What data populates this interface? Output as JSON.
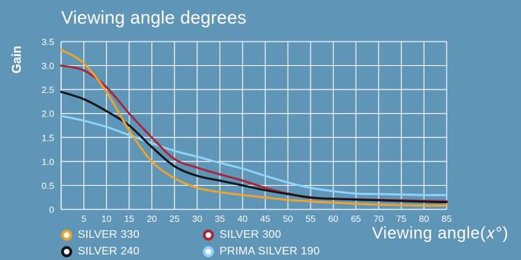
{
  "chart_data": {
    "type": "line",
    "title": "Viewing angle degrees",
    "xlabel": "Viewing  angle(𝑥°)",
    "ylabel": "Gain",
    "xlim": [
      0,
      85
    ],
    "ylim": [
      0,
      3.5
    ],
    "x_ticks": [
      5,
      10,
      15,
      20,
      25,
      30,
      35,
      40,
      45,
      50,
      55,
      60,
      65,
      70,
      75,
      80,
      85
    ],
    "y_ticks": [
      0,
      0.5,
      1.0,
      1.5,
      2.0,
      2.5,
      3.0,
      3.5
    ],
    "y_tick_labels": [
      "0",
      "0.5",
      "1.0",
      "1.5",
      "2.0",
      "2.5",
      "3.0",
      "3.5"
    ],
    "grid": true,
    "legend_position": "bottom",
    "series": [
      {
        "name": "SILVER 330",
        "color": "#f2a12a",
        "points": [
          [
            0,
            3.33
          ],
          [
            5,
            3.05
          ],
          [
            10,
            2.45
          ],
          [
            15,
            1.65
          ],
          [
            20,
            1.0
          ],
          [
            25,
            0.65
          ],
          [
            30,
            0.45
          ],
          [
            35,
            0.36
          ],
          [
            40,
            0.3
          ],
          [
            50,
            0.2
          ],
          [
            60,
            0.14
          ],
          [
            70,
            0.1
          ],
          [
            80,
            0.08
          ],
          [
            85,
            0.08
          ]
        ]
      },
      {
        "name": "SILVER 300",
        "color": "#a8283a",
        "points": [
          [
            0,
            3.0
          ],
          [
            5,
            2.9
          ],
          [
            10,
            2.55
          ],
          [
            15,
            2.0
          ],
          [
            20,
            1.5
          ],
          [
            25,
            1.05
          ],
          [
            30,
            0.87
          ],
          [
            35,
            0.73
          ],
          [
            40,
            0.6
          ],
          [
            45,
            0.45
          ],
          [
            50,
            0.33
          ],
          [
            55,
            0.24
          ],
          [
            60,
            0.22
          ],
          [
            70,
            0.2
          ],
          [
            80,
            0.18
          ],
          [
            85,
            0.17
          ]
        ]
      },
      {
        "name": "SILVER 240",
        "color": "#161616",
        "points": [
          [
            0,
            2.45
          ],
          [
            5,
            2.3
          ],
          [
            10,
            2.05
          ],
          [
            15,
            1.75
          ],
          [
            20,
            1.3
          ],
          [
            25,
            0.9
          ],
          [
            30,
            0.7
          ],
          [
            35,
            0.6
          ],
          [
            40,
            0.5
          ],
          [
            45,
            0.4
          ],
          [
            50,
            0.32
          ],
          [
            55,
            0.25
          ],
          [
            60,
            0.22
          ],
          [
            70,
            0.19
          ],
          [
            80,
            0.16
          ],
          [
            85,
            0.15
          ]
        ]
      },
      {
        "name": "PRIMA SILVER 190",
        "color": "#8fd3f8",
        "points": [
          [
            0,
            1.95
          ],
          [
            5,
            1.85
          ],
          [
            10,
            1.72
          ],
          [
            15,
            1.55
          ],
          [
            20,
            1.38
          ],
          [
            25,
            1.22
          ],
          [
            30,
            1.1
          ],
          [
            35,
            0.97
          ],
          [
            40,
            0.85
          ],
          [
            45,
            0.7
          ],
          [
            50,
            0.56
          ],
          [
            55,
            0.45
          ],
          [
            60,
            0.38
          ],
          [
            65,
            0.33
          ],
          [
            70,
            0.32
          ],
          [
            75,
            0.31
          ],
          [
            80,
            0.3
          ],
          [
            85,
            0.3
          ]
        ]
      }
    ]
  }
}
